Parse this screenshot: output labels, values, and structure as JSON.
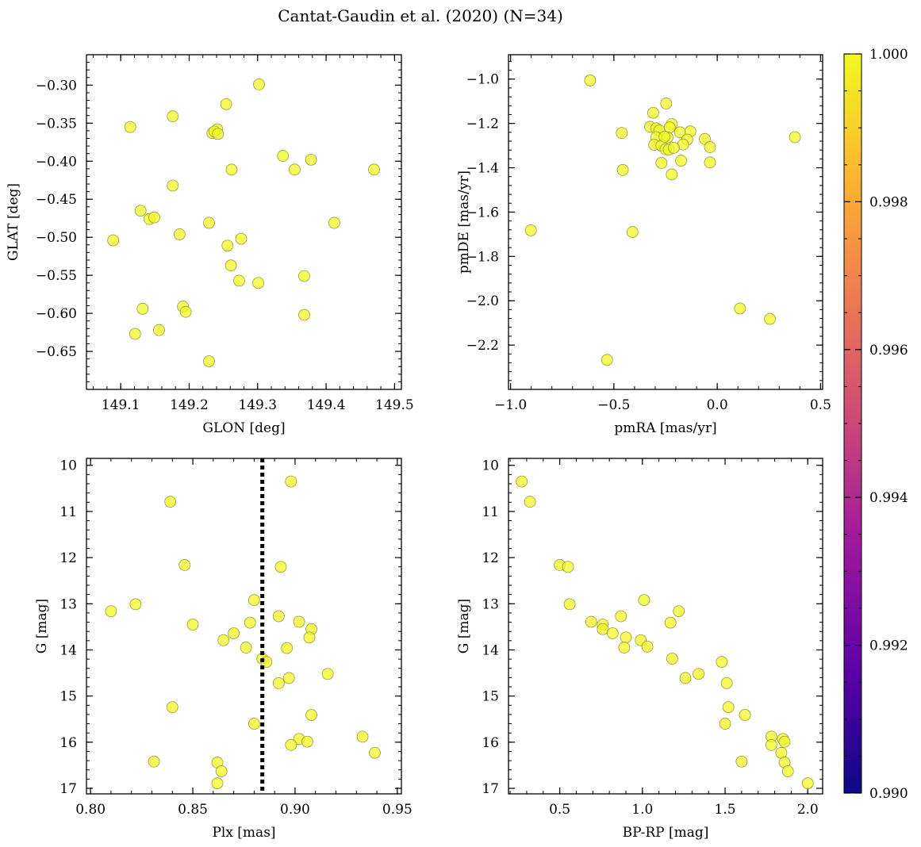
{
  "figure": {
    "title": "Cantat-Gaudin et al. (2020) (N=34)"
  },
  "colorbar": {
    "cmap": "plasma",
    "range": [
      0.99,
      1.0
    ],
    "ticks": [
      "0.990",
      "0.992",
      "0.994",
      "0.996",
      "0.998",
      "1.000"
    ],
    "tick_values": [
      0.99,
      0.992,
      0.994,
      0.996,
      0.998,
      1.0
    ],
    "colors": [
      "#0d0887",
      "#5c01a6",
      "#9c179e",
      "#cc4778",
      "#ed7953",
      "#fdb42f",
      "#f0f921"
    ]
  },
  "point_style": {
    "fill": "#f0f921",
    "edge": "#9a9a40",
    "opacity": 0.75
  },
  "chart_data": [
    {
      "type": "scatter",
      "id": "sky",
      "xlabel": "GLON [deg]",
      "ylabel": "GLAT [deg]",
      "xlim": [
        149.05,
        149.51
      ],
      "ylim": [
        -0.7,
        -0.26
      ],
      "y_inverted": false,
      "xticks": [
        149.1,
        149.2,
        149.3,
        149.4,
        149.5
      ],
      "xtick_labels": [
        "149.1",
        "149.2",
        "149.3",
        "149.4",
        "149.5"
      ],
      "yticks": [
        -0.3,
        -0.35,
        -0.4,
        -0.45,
        -0.5,
        -0.55,
        -0.6,
        -0.65
      ],
      "ytick_labels": [
        "−0.30",
        "−0.35",
        "−0.40",
        "−0.45",
        "−0.50",
        "−0.55",
        "−0.60",
        "−0.65"
      ],
      "points": [
        [
          149.302,
          -0.299
        ],
        [
          149.254,
          -0.325
        ],
        [
          149.114,
          -0.355
        ],
        [
          149.176,
          -0.341
        ],
        [
          149.241,
          -0.358
        ],
        [
          149.234,
          -0.363
        ],
        [
          149.237,
          -0.361
        ],
        [
          149.242,
          -0.364
        ],
        [
          149.337,
          -0.393
        ],
        [
          149.378,
          -0.398
        ],
        [
          149.354,
          -0.411
        ],
        [
          149.262,
          -0.411
        ],
        [
          149.47,
          -0.411
        ],
        [
          149.176,
          -0.432
        ],
        [
          149.129,
          -0.465
        ],
        [
          149.142,
          -0.476
        ],
        [
          149.149,
          -0.474
        ],
        [
          149.229,
          -0.481
        ],
        [
          149.412,
          -0.481
        ],
        [
          149.186,
          -0.496
        ],
        [
          149.089,
          -0.504
        ],
        [
          149.276,
          -0.502
        ],
        [
          149.256,
          -0.511
        ],
        [
          149.261,
          -0.537
        ],
        [
          149.368,
          -0.551
        ],
        [
          149.273,
          -0.557
        ],
        [
          149.301,
          -0.56
        ],
        [
          149.132,
          -0.594
        ],
        [
          149.191,
          -0.591
        ],
        [
          149.195,
          -0.598
        ],
        [
          149.368,
          -0.602
        ],
        [
          149.156,
          -0.622
        ],
        [
          149.121,
          -0.627
        ],
        [
          149.229,
          -0.663
        ]
      ]
    },
    {
      "type": "scatter",
      "id": "pm",
      "xlabel": "pmRA [mas/yr]",
      "ylabel": "pmDE [mas/yr]",
      "xlim": [
        -1.01,
        0.51
      ],
      "ylim": [
        -2.4,
        -0.89
      ],
      "y_inverted": false,
      "xticks": [
        -1.0,
        -0.5,
        0.0,
        0.5
      ],
      "xtick_labels": [
        "−1.0",
        "−0.5",
        "0.0",
        "0.5"
      ],
      "yticks": [
        -1.0,
        -1.2,
        -1.4,
        -1.6,
        -1.8,
        -2.0,
        -2.2
      ],
      "ytick_labels": [
        "−1.0",
        "−1.2",
        "−1.4",
        "−1.6",
        "−1.8",
        "−2.0",
        "−2.2"
      ],
      "points": [
        [
          -0.615,
          -1.006
        ],
        [
          -0.902,
          -1.682
        ],
        [
          -0.41,
          -1.69
        ],
        [
          -0.462,
          -1.243
        ],
        [
          -0.457,
          -1.41
        ],
        [
          -0.533,
          -2.267
        ],
        [
          0.376,
          -1.262
        ],
        [
          0.11,
          -2.035
        ],
        [
          0.255,
          -2.082
        ],
        [
          -0.247,
          -1.11
        ],
        [
          -0.31,
          -1.152
        ],
        [
          -0.325,
          -1.215
        ],
        [
          -0.295,
          -1.222
        ],
        [
          -0.28,
          -1.232
        ],
        [
          -0.22,
          -1.203
        ],
        [
          -0.23,
          -1.218
        ],
        [
          -0.18,
          -1.24
        ],
        [
          -0.13,
          -1.236
        ],
        [
          -0.295,
          -1.262
        ],
        [
          -0.24,
          -1.263
        ],
        [
          -0.06,
          -1.27
        ],
        [
          -0.145,
          -1.273
        ],
        [
          -0.305,
          -1.296
        ],
        [
          -0.27,
          -1.3
        ],
        [
          -0.165,
          -1.295
        ],
        [
          -0.25,
          -1.316
        ],
        [
          -0.235,
          -1.318
        ],
        [
          -0.21,
          -1.31
        ],
        [
          -0.035,
          -1.307
        ],
        [
          -0.27,
          -1.378
        ],
        [
          -0.175,
          -1.368
        ],
        [
          -0.035,
          -1.376
        ],
        [
          -0.22,
          -1.43
        ],
        [
          -0.255,
          -1.26
        ]
      ]
    },
    {
      "type": "scatter",
      "id": "plx",
      "xlabel": "Plx [mas]",
      "ylabel": "G [mag]",
      "xlim": [
        0.798,
        0.952
      ],
      "ylim": [
        9.85,
        17.12
      ],
      "y_inverted": true,
      "vline": 0.884,
      "xticks": [
        0.8,
        0.85,
        0.9,
        0.95
      ],
      "xtick_labels": [
        "0.80",
        "0.85",
        "0.90",
        "0.95"
      ],
      "yticks": [
        10,
        11,
        12,
        13,
        14,
        15,
        16,
        17
      ],
      "ytick_labels": [
        "10",
        "11",
        "12",
        "13",
        "14",
        "15",
        "16",
        "17"
      ],
      "points": [
        [
          0.898,
          10.35
        ],
        [
          0.839,
          10.79
        ],
        [
          0.846,
          12.16
        ],
        [
          0.893,
          12.2
        ],
        [
          0.88,
          12.92
        ],
        [
          0.81,
          13.16
        ],
        [
          0.822,
          13.01
        ],
        [
          0.892,
          13.27
        ],
        [
          0.902,
          13.39
        ],
        [
          0.878,
          13.41
        ],
        [
          0.85,
          13.45
        ],
        [
          0.908,
          13.55
        ],
        [
          0.87,
          13.64
        ],
        [
          0.865,
          13.79
        ],
        [
          0.907,
          13.73
        ],
        [
          0.876,
          13.95
        ],
        [
          0.896,
          13.96
        ],
        [
          0.884,
          14.19
        ],
        [
          0.886,
          14.26
        ],
        [
          0.916,
          14.52
        ],
        [
          0.897,
          14.61
        ],
        [
          0.892,
          14.72
        ],
        [
          0.84,
          15.24
        ],
        [
          0.908,
          15.41
        ],
        [
          0.88,
          15.6
        ],
        [
          0.933,
          15.88
        ],
        [
          0.902,
          15.93
        ],
        [
          0.906,
          15.99
        ],
        [
          0.898,
          16.06
        ],
        [
          0.939,
          16.23
        ],
        [
          0.831,
          16.42
        ],
        [
          0.862,
          16.44
        ],
        [
          0.864,
          16.63
        ],
        [
          0.862,
          16.89
        ]
      ]
    },
    {
      "type": "scatter",
      "id": "cmd",
      "xlabel": "BP-RP [mag]",
      "ylabel": "G [mag]",
      "xlim": [
        0.19,
        2.09
      ],
      "ylim": [
        9.85,
        17.12
      ],
      "y_inverted": true,
      "xticks": [
        0.5,
        1.0,
        1.5,
        2.0
      ],
      "xtick_labels": [
        "0.5",
        "1.0",
        "1.5",
        "2.0"
      ],
      "yticks": [
        10,
        11,
        12,
        13,
        14,
        15,
        16,
        17
      ],
      "ytick_labels": [
        "10",
        "11",
        "12",
        "13",
        "14",
        "15",
        "16",
        "17"
      ],
      "points": [
        [
          0.27,
          10.35
        ],
        [
          0.32,
          10.79
        ],
        [
          0.5,
          12.16
        ],
        [
          0.55,
          12.2
        ],
        [
          1.01,
          12.92
        ],
        [
          0.56,
          13.01
        ],
        [
          1.22,
          13.16
        ],
        [
          0.87,
          13.27
        ],
        [
          0.69,
          13.39
        ],
        [
          1.17,
          13.41
        ],
        [
          0.76,
          13.45
        ],
        [
          0.76,
          13.55
        ],
        [
          0.82,
          13.64
        ],
        [
          0.9,
          13.73
        ],
        [
          0.99,
          13.79
        ],
        [
          0.89,
          13.95
        ],
        [
          1.03,
          13.93
        ],
        [
          1.18,
          14.19
        ],
        [
          1.48,
          14.26
        ],
        [
          1.34,
          14.52
        ],
        [
          1.26,
          14.61
        ],
        [
          1.51,
          14.72
        ],
        [
          1.52,
          15.24
        ],
        [
          1.62,
          15.41
        ],
        [
          1.5,
          15.6
        ],
        [
          1.78,
          15.88
        ],
        [
          1.85,
          15.93
        ],
        [
          1.86,
          15.99
        ],
        [
          1.78,
          16.06
        ],
        [
          1.84,
          16.23
        ],
        [
          1.6,
          16.42
        ],
        [
          1.86,
          16.44
        ],
        [
          1.88,
          16.63
        ],
        [
          2.0,
          16.89
        ]
      ]
    }
  ]
}
